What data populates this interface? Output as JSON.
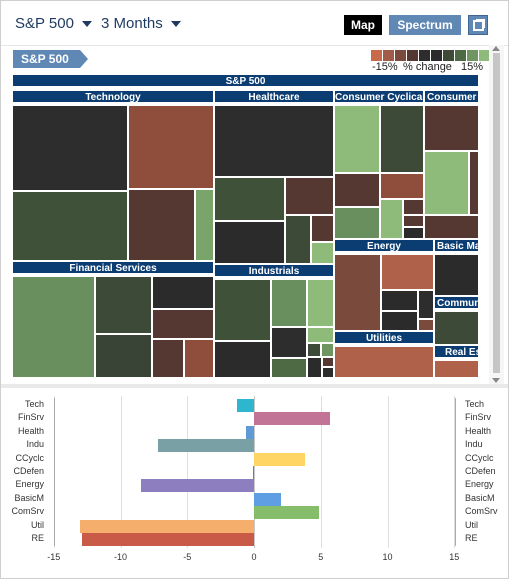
{
  "toolbar": {
    "index_dropdown": "S&P 500",
    "period_dropdown": "3 Months",
    "map_button": "Map",
    "spectrum_button": "Spectrum",
    "popout_icon": "popout-icon"
  },
  "breadcrumb": {
    "current": "S&P 500"
  },
  "legend": {
    "colors": [
      "#c8694a",
      "#a15b48",
      "#7a4a3d",
      "#553832",
      "#2d2d2d",
      "#2b2b2b",
      "#3d4a38",
      "#4d6a45",
      "#6f9660",
      "#8fbb7a",
      "#9fd08a"
    ],
    "left_label": "-15%",
    "mid_label": "% change",
    "right_label": "15%"
  },
  "treemap": {
    "title": "S&P 500",
    "sectors": {
      "technology": "Technology",
      "healthcare": "Healthcare",
      "consumer_cyclical": "Consumer Cyclical",
      "consumer_defensive": "Consumer D",
      "financial_services": "Financial Services",
      "industrials": "Industrials",
      "energy": "Energy",
      "basic_materials": "Basic Ma",
      "communication": "Communic",
      "utilities": "Utilities",
      "real_estate": "Real Es"
    }
  },
  "chart_data": {
    "type": "bar",
    "orientation": "horizontal",
    "categories": [
      "Tech",
      "FinSrv",
      "Health",
      "Indu",
      "CCyclc",
      "CDefen",
      "Energy",
      "BasicM",
      "ComSrv",
      "Util",
      "RE"
    ],
    "values": [
      -1.3,
      5.7,
      -0.6,
      -7.2,
      3.8,
      -0.1,
      -8.5,
      2.0,
      4.9,
      -13.0,
      -12.9
    ],
    "colors": [
      "#2fb6cf",
      "#c17495",
      "#5d9ad6",
      "#79a0a4",
      "#ffd566",
      "#d9534f",
      "#8d7fbf",
      "#5f9ee3",
      "#86bd6a",
      "#f5ae6c",
      "#c95a47"
    ],
    "xlim": [
      -15,
      15
    ],
    "xticks": [
      "-15",
      "-10",
      "-5",
      "0",
      "5",
      "10",
      "15"
    ],
    "grid": true
  }
}
